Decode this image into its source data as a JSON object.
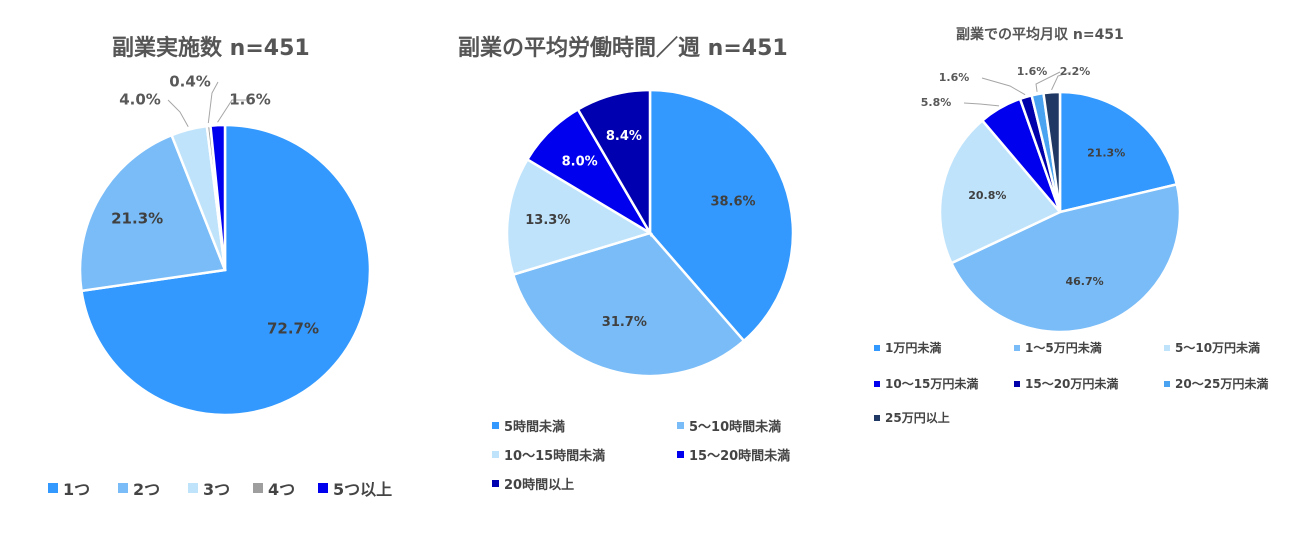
{
  "chart_data": [
    {
      "type": "pie",
      "title": "副業実施数 n=451",
      "categories": [
        "1つ",
        "2つ",
        "3つ",
        "4つ",
        "5つ以上"
      ],
      "values": [
        72.7,
        21.3,
        4.0,
        0.4,
        1.6
      ],
      "labels": [
        "72.7%",
        "21.3%",
        "4.0%",
        "0.4%",
        "1.6%"
      ],
      "colors": [
        "#3399ff",
        "#7abcf7",
        "#bfe3fb",
        "#9e9e9e",
        "#0000ee"
      ],
      "legend_position": "bottom"
    },
    {
      "type": "pie",
      "title": "副業の平均労働時間／週 n=451",
      "categories": [
        "5時間未満",
        "5～10時間未満",
        "10～15時間未満",
        "15～20時間未満",
        "20時間以上"
      ],
      "values": [
        38.6,
        31.7,
        13.3,
        8.0,
        8.4
      ],
      "labels": [
        "38.6%",
        "31.7%",
        "13.3%",
        "8.0%",
        "8.4%"
      ],
      "colors": [
        "#3399ff",
        "#7abcf7",
        "#bfe3fb",
        "#0000ee",
        "#0000b0"
      ],
      "legend_position": "bottom"
    },
    {
      "type": "pie",
      "title": "副業での平均月収 n=451",
      "categories": [
        "1万円未満",
        "1～5万円未満",
        "5～10万円未満",
        "10～15万円未満",
        "15～20万円未満",
        "20～25万円未満",
        "25万円以上"
      ],
      "values": [
        21.3,
        46.7,
        20.8,
        5.8,
        1.6,
        1.6,
        2.2
      ],
      "labels": [
        "21.3%",
        "46.7%",
        "20.8%",
        "5.8%",
        "1.6%",
        "1.6%",
        "2.2%"
      ],
      "colors": [
        "#3399ff",
        "#7abcf7",
        "#bfe3fb",
        "#0000ee",
        "#0000aa",
        "#4aa3f0",
        "#203864"
      ],
      "legend_position": "bottom"
    }
  ]
}
